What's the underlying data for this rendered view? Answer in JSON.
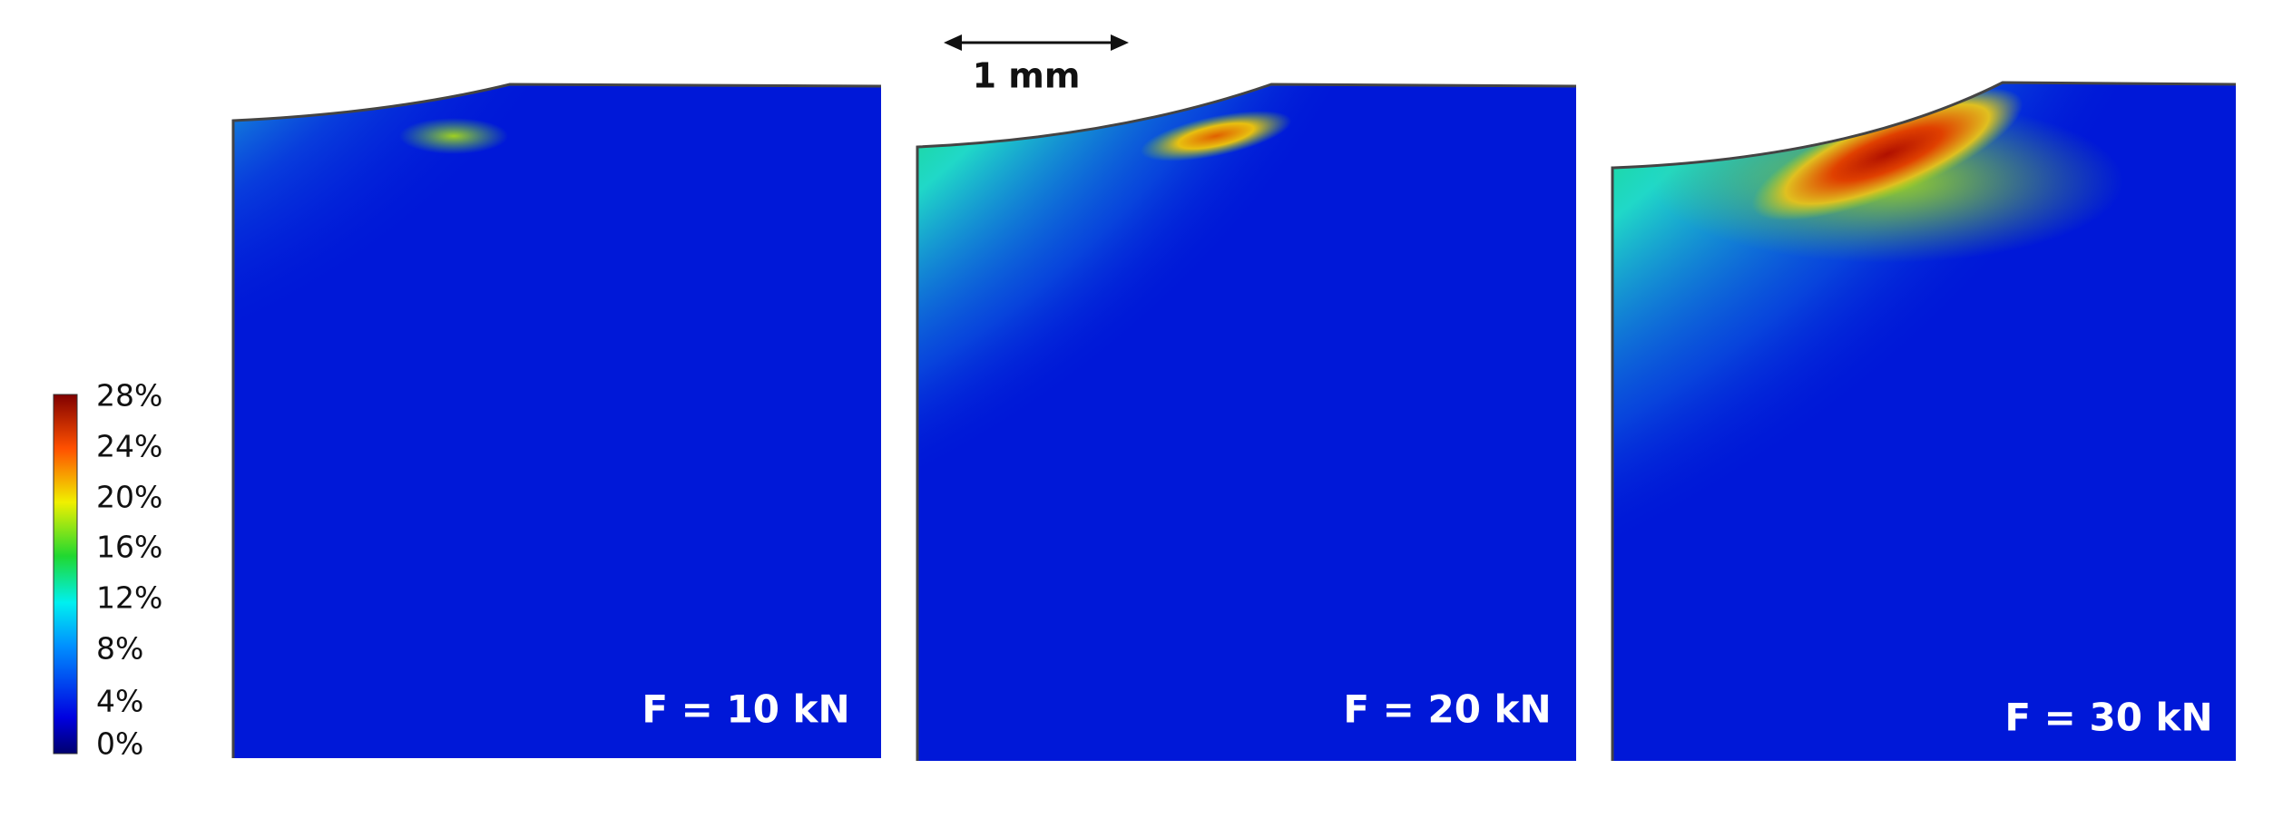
{
  "colorbar": {
    "labels": [
      "28%",
      "24%",
      "20%",
      "16%",
      "12%",
      "8%",
      "4%",
      "0%"
    ]
  },
  "scale_bar": {
    "label": "1 mm"
  },
  "panels": [
    {
      "label": "F = 10 kN"
    },
    {
      "label": "F = 20 kN"
    },
    {
      "label": "F = 30 kN"
    }
  ]
}
